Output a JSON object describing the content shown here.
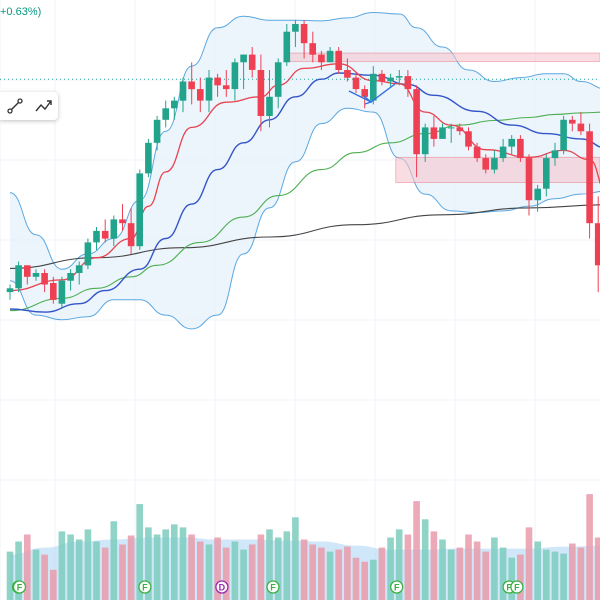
{
  "header": {
    "price_change": "+0.63%)"
  },
  "toolbar": {
    "tools": [
      "trend-line-tool",
      "path-tool"
    ]
  },
  "colors": {
    "up": "#22a38b",
    "down": "#ef3f52",
    "ema_fast": "#e8434f",
    "ema_mid": "#3556c8",
    "sma_green": "#4caf50",
    "sma_long": "#444444",
    "bb": "#5ba8e0",
    "bb_fill": "#e7f1fb",
    "zone": "#f7c7cf",
    "zone_border": "#e57380",
    "vol_up": "#7dcbbd",
    "vol_down": "#e99aaa",
    "vol_ma": "#a9d3f4"
  },
  "chart_data": {
    "type": "candlestick",
    "title": "",
    "xlabel": "",
    "ylabel": "",
    "price_range": [
      70,
      138
    ],
    "volume_range": [
      0,
      120
    ],
    "candles": [
      [
        103,
        104,
        102,
        103.5
      ],
      [
        103.5,
        107,
        103,
        106.5
      ],
      [
        106.5,
        106.5,
        104,
        105
      ],
      [
        105,
        106,
        104.5,
        105.5
      ],
      [
        105.5,
        106,
        103,
        104
      ],
      [
        104.2,
        105,
        101.5,
        102
      ],
      [
        101.5,
        105,
        101,
        104.5
      ],
      [
        104.5,
        106,
        103.2,
        105.5
      ],
      [
        105.5,
        107,
        104,
        106.5
      ],
      [
        106.5,
        110,
        106,
        109.5
      ],
      [
        109.5,
        111.5,
        108.5,
        111
      ],
      [
        111,
        112.5,
        109.5,
        110
      ],
      [
        110,
        113,
        109,
        112.5
      ],
      [
        112.5,
        114.5,
        111,
        112
      ],
      [
        112,
        114,
        108,
        109
      ],
      [
        109,
        119,
        108.5,
        118.5
      ],
      [
        118.5,
        123,
        118,
        122.5
      ],
      [
        122.5,
        126,
        121.5,
        125.5
      ],
      [
        125.5,
        128,
        124.5,
        127
      ],
      [
        127,
        128.5,
        125.5,
        128
      ],
      [
        128,
        131,
        126.5,
        130.5
      ],
      [
        130.5,
        133,
        127.5,
        129.5
      ],
      [
        129.5,
        131,
        126.5,
        128
      ],
      [
        128,
        132,
        126.5,
        131
      ],
      [
        131,
        131.5,
        128.5,
        130
      ],
      [
        130,
        132,
        128.5,
        129.5
      ],
      [
        129.5,
        133.5,
        128,
        133
      ],
      [
        133,
        134,
        129.5,
        134
      ],
      [
        134,
        135,
        131,
        132
      ],
      [
        132,
        134,
        124,
        126
      ],
      [
        126,
        132,
        124.5,
        128.5
      ],
      [
        128.5,
        133.5,
        127,
        133
      ],
      [
        133,
        138,
        132.5,
        137
      ],
      [
        137,
        138.5,
        135,
        138
      ],
      [
        138,
        138.5,
        133.5,
        135.5
      ],
      [
        135.5,
        137,
        133,
        134
      ],
      [
        134,
        134.5,
        132,
        133
      ],
      [
        133,
        135,
        133,
        134.5
      ],
      [
        134.5,
        135,
        131.5,
        132
      ],
      [
        132,
        133.5,
        130.5,
        131
      ],
      [
        131,
        131.5,
        129,
        129.5
      ],
      [
        129.5,
        130,
        127,
        128.5
      ],
      [
        128,
        132.5,
        127.5,
        131.5
      ],
      [
        131.5,
        132,
        130,
        130.5
      ],
      [
        130.5,
        131.5,
        129.8,
        131
      ],
      [
        131,
        132,
        130,
        131.2
      ],
      [
        131.2,
        132,
        128.5,
        129.5
      ],
      [
        129.5,
        130,
        118,
        121
      ],
      [
        121,
        125,
        120,
        124.5
      ],
      [
        124.5,
        126,
        122,
        123
      ],
      [
        123,
        125,
        123,
        124.5
      ],
      [
        124.5,
        125,
        122.5,
        124.5
      ],
      [
        124.5,
        125,
        123.5,
        124
      ],
      [
        124,
        124.5,
        121.5,
        122
      ],
      [
        122,
        122.5,
        120,
        120.5
      ],
      [
        120.5,
        121,
        118.5,
        119
      ],
      [
        119,
        121.5,
        118.5,
        120.5
      ],
      [
        120.5,
        123,
        120,
        122
      ],
      [
        122,
        123.5,
        121,
        123
      ],
      [
        123,
        123.5,
        120,
        120.5
      ],
      [
        120.5,
        121,
        113,
        115
      ],
      [
        115,
        117,
        113.5,
        116.5
      ],
      [
        116.5,
        121,
        115.5,
        120.5
      ],
      [
        120.5,
        122.5,
        119.5,
        121.5
      ],
      [
        121.5,
        126,
        121,
        125.5
      ],
      [
        125.5,
        126,
        124,
        125
      ],
      [
        125,
        126.5,
        123.5,
        124
      ],
      [
        124,
        125,
        110,
        112
      ],
      [
        112,
        115.5,
        103,
        106.5
      ]
    ],
    "volumes": [
      38,
      48,
      55,
      40,
      35,
      20,
      58,
      55,
      50,
      60,
      48,
      42,
      68,
      45,
      54,
      85,
      62,
      55,
      60,
      65,
      62,
      55,
      48,
      45,
      52,
      42,
      48,
      40,
      45,
      55,
      60,
      52,
      58,
      72,
      50,
      45,
      42,
      38,
      40,
      43,
      32,
      28,
      30,
      42,
      52,
      60,
      55,
      88,
      70,
      58,
      50,
      40,
      42,
      55,
      48,
      38,
      52,
      42,
      32,
      35,
      62,
      48,
      40,
      38,
      36,
      46,
      42,
      95,
      52
    ],
    "overlays": {
      "ema_fast": [
        [
          0,
          103.2
        ],
        [
          6,
          104.6
        ],
        [
          10,
          107.5
        ],
        [
          14,
          110
        ],
        [
          16,
          114.2
        ],
        [
          18,
          118.7
        ],
        [
          21,
          124.5
        ],
        [
          25,
          127.8
        ],
        [
          29,
          128.5
        ],
        [
          31,
          130
        ],
        [
          34,
          132.2
        ],
        [
          38,
          132.8
        ],
        [
          42,
          130.6
        ],
        [
          45,
          130.2
        ],
        [
          48,
          126.5
        ],
        [
          51,
          124.8
        ],
        [
          55,
          121.6
        ],
        [
          60,
          120.6
        ],
        [
          64,
          121.5
        ],
        [
          67,
          120.3
        ],
        [
          69,
          116
        ]
      ],
      "ema_mid": [
        [
          0,
          100.8
        ],
        [
          4,
          100.4
        ],
        [
          8,
          101.5
        ],
        [
          11,
          103.2
        ],
        [
          15,
          106
        ],
        [
          18,
          110
        ],
        [
          21,
          114.5
        ],
        [
          24,
          119
        ],
        [
          27,
          122.5
        ],
        [
          30,
          125.5
        ],
        [
          33,
          128.5
        ],
        [
          36,
          130.8
        ],
        [
          38,
          131.6
        ],
        [
          42,
          131.3
        ],
        [
          46,
          130.1
        ],
        [
          49,
          128.7
        ],
        [
          54,
          126.6
        ],
        [
          58,
          124.8
        ],
        [
          62,
          123.7
        ],
        [
          66,
          123
        ],
        [
          69,
          121.8
        ]
      ],
      "sma_green": [
        [
          0,
          100.6
        ],
        [
          6,
          102.2
        ],
        [
          10,
          103.5
        ],
        [
          14,
          105
        ],
        [
          17,
          106.5
        ],
        [
          22,
          109.5
        ],
        [
          27,
          112.8
        ],
        [
          31,
          115.6
        ],
        [
          36,
          119
        ],
        [
          40,
          121.2
        ],
        [
          44,
          122.5
        ],
        [
          48,
          123.7
        ],
        [
          52,
          124.8
        ],
        [
          56,
          125.4
        ],
        [
          60,
          125.8
        ],
        [
          63,
          126.2
        ],
        [
          66,
          126.4
        ],
        [
          69,
          126.5
        ]
      ],
      "sma_long": [
        [
          0,
          106.1
        ],
        [
          10,
          107.5
        ],
        [
          20,
          108.8
        ],
        [
          30,
          110.2
        ],
        [
          40,
          111.8
        ],
        [
          50,
          113.1
        ],
        [
          60,
          114
        ],
        [
          69,
          114.4
        ]
      ],
      "bb_upper": [
        [
          0,
          116
        ],
        [
          3,
          110.5
        ],
        [
          6,
          106
        ],
        [
          9,
          108
        ],
        [
          12,
          110
        ],
        [
          15,
          115
        ],
        [
          18,
          124
        ],
        [
          21,
          132.5
        ],
        [
          24,
          137.5
        ],
        [
          27,
          139
        ],
        [
          30,
          138.5
        ],
        [
          33,
          138.5
        ],
        [
          36,
          138.4
        ],
        [
          39,
          138.8
        ],
        [
          42,
          139.5
        ],
        [
          45,
          139.3
        ],
        [
          47,
          137.5
        ],
        [
          50,
          135
        ],
        [
          53,
          132
        ],
        [
          56,
          130.5
        ],
        [
          59,
          131
        ],
        [
          62,
          131.5
        ],
        [
          64,
          131.5
        ],
        [
          66,
          130.5
        ],
        [
          69,
          129.5
        ]
      ],
      "bb_lower": [
        [
          0,
          104.5
        ],
        [
          3,
          100
        ],
        [
          6,
          99.4
        ],
        [
          9,
          99.8
        ],
        [
          12,
          102
        ],
        [
          15,
          102
        ],
        [
          18,
          100
        ],
        [
          21,
          98.2
        ],
        [
          24,
          100
        ],
        [
          27,
          108
        ],
        [
          30,
          114
        ],
        [
          33,
          120
        ],
        [
          36,
          125
        ],
        [
          39,
          127
        ],
        [
          42,
          126.5
        ],
        [
          45,
          120.5
        ],
        [
          48,
          115.8
        ],
        [
          51,
          113.6
        ],
        [
          54,
          113.4
        ],
        [
          57,
          113.6
        ],
        [
          60,
          114.2
        ],
        [
          63,
          115.2
        ],
        [
          66,
          115.8
        ],
        [
          69,
          116.2
        ]
      ],
      "vol_ma": [
        [
          0,
          35
        ],
        [
          4,
          42
        ],
        [
          8,
          48
        ],
        [
          12,
          50
        ],
        [
          16,
          52
        ],
        [
          20,
          52
        ],
        [
          24,
          50
        ],
        [
          28,
          50
        ],
        [
          32,
          49
        ],
        [
          36,
          48
        ],
        [
          40,
          44
        ],
        [
          44,
          40
        ],
        [
          48,
          40
        ],
        [
          52,
          41
        ],
        [
          56,
          41
        ],
        [
          60,
          41
        ],
        [
          64,
          43
        ],
        [
          69,
          44
        ]
      ]
    },
    "zones": [
      {
        "name": "resistance-zone",
        "x_start": 32.3,
        "x_end": 70,
        "price_top": 134.2,
        "price_bottom": 133.1
      },
      {
        "name": "consolidation-zone",
        "x_start": 44.6,
        "x_end": 70,
        "price_top": 120.6,
        "price_bottom": 117.3
      }
    ],
    "horizontal_levels": [
      {
        "name": "dotted-price-line",
        "price": 130.8
      }
    ],
    "event_markers": [
      {
        "label": "F",
        "bar": 1
      },
      {
        "label": "F",
        "bar": 1.1
      },
      {
        "label": "F",
        "bar": 15.6
      },
      {
        "label": "D",
        "bar": 24.5
      },
      {
        "label": "F",
        "bar": 30.4
      },
      {
        "label": "F",
        "bar": 44.7
      },
      {
        "label": "F",
        "bar": 57.7
      },
      {
        "label": "F",
        "bar": 58.6
      }
    ]
  }
}
